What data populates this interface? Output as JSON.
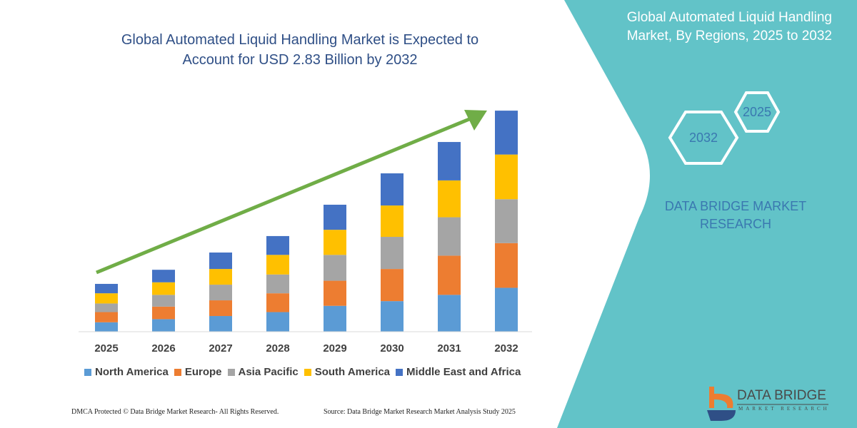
{
  "title": "Global Automated Liquid Handling Market is Expected to Account for USD 2.83 Billion by 2032",
  "title_lines": [
    "Global Automated Liquid Handling Market is Expected to",
    "Account for USD 2.83 Billion by 2032"
  ],
  "side_panel": {
    "title_lines": [
      "Global Automated Liquid Handling",
      "Market, By Regions, 2025 to 2032"
    ],
    "hex_years": [
      "2025",
      "2032"
    ],
    "brand_lines": [
      "DATA BRIDGE MARKET",
      "RESEARCH"
    ],
    "logo_text": "DATA BRIDGE",
    "logo_subtext": "MARKET RESEARCH",
    "panel_color": "#62c3c8"
  },
  "footer": {
    "copyright": "DMCA Protected © Data Bridge Market Research-  All Rights Reserved.",
    "source": "Source: Data Bridge Market Research  Market Analysis Study 2025"
  },
  "chart_data": {
    "type": "bar",
    "stacked": true,
    "categories": [
      "2025",
      "2026",
      "2027",
      "2028",
      "2029",
      "2030",
      "2031",
      "2032"
    ],
    "series": [
      {
        "name": "North America",
        "color": "#5b9bd5",
        "values": [
          0.12,
          0.16,
          0.2,
          0.25,
          0.33,
          0.39,
          0.47,
          0.56
        ]
      },
      {
        "name": "Europe",
        "color": "#ed7d31",
        "values": [
          0.13,
          0.16,
          0.2,
          0.24,
          0.32,
          0.41,
          0.5,
          0.57
        ]
      },
      {
        "name": "Asia Pacific",
        "color": "#a5a5a5",
        "values": [
          0.11,
          0.15,
          0.2,
          0.24,
          0.33,
          0.41,
          0.49,
          0.56
        ]
      },
      {
        "name": "South America",
        "color": "#ffc000",
        "values": [
          0.13,
          0.16,
          0.2,
          0.25,
          0.32,
          0.4,
          0.47,
          0.57
        ]
      },
      {
        "name": "Middle East and Africa",
        "color": "#4472c4",
        "values": [
          0.12,
          0.16,
          0.21,
          0.24,
          0.32,
          0.41,
          0.49,
          0.56
        ]
      }
    ],
    "ylim": [
      0,
      2.83
    ],
    "y_axis_visible": false,
    "grid": false,
    "legend_position": "bottom",
    "trend_arrow_color": "#70ad47"
  }
}
